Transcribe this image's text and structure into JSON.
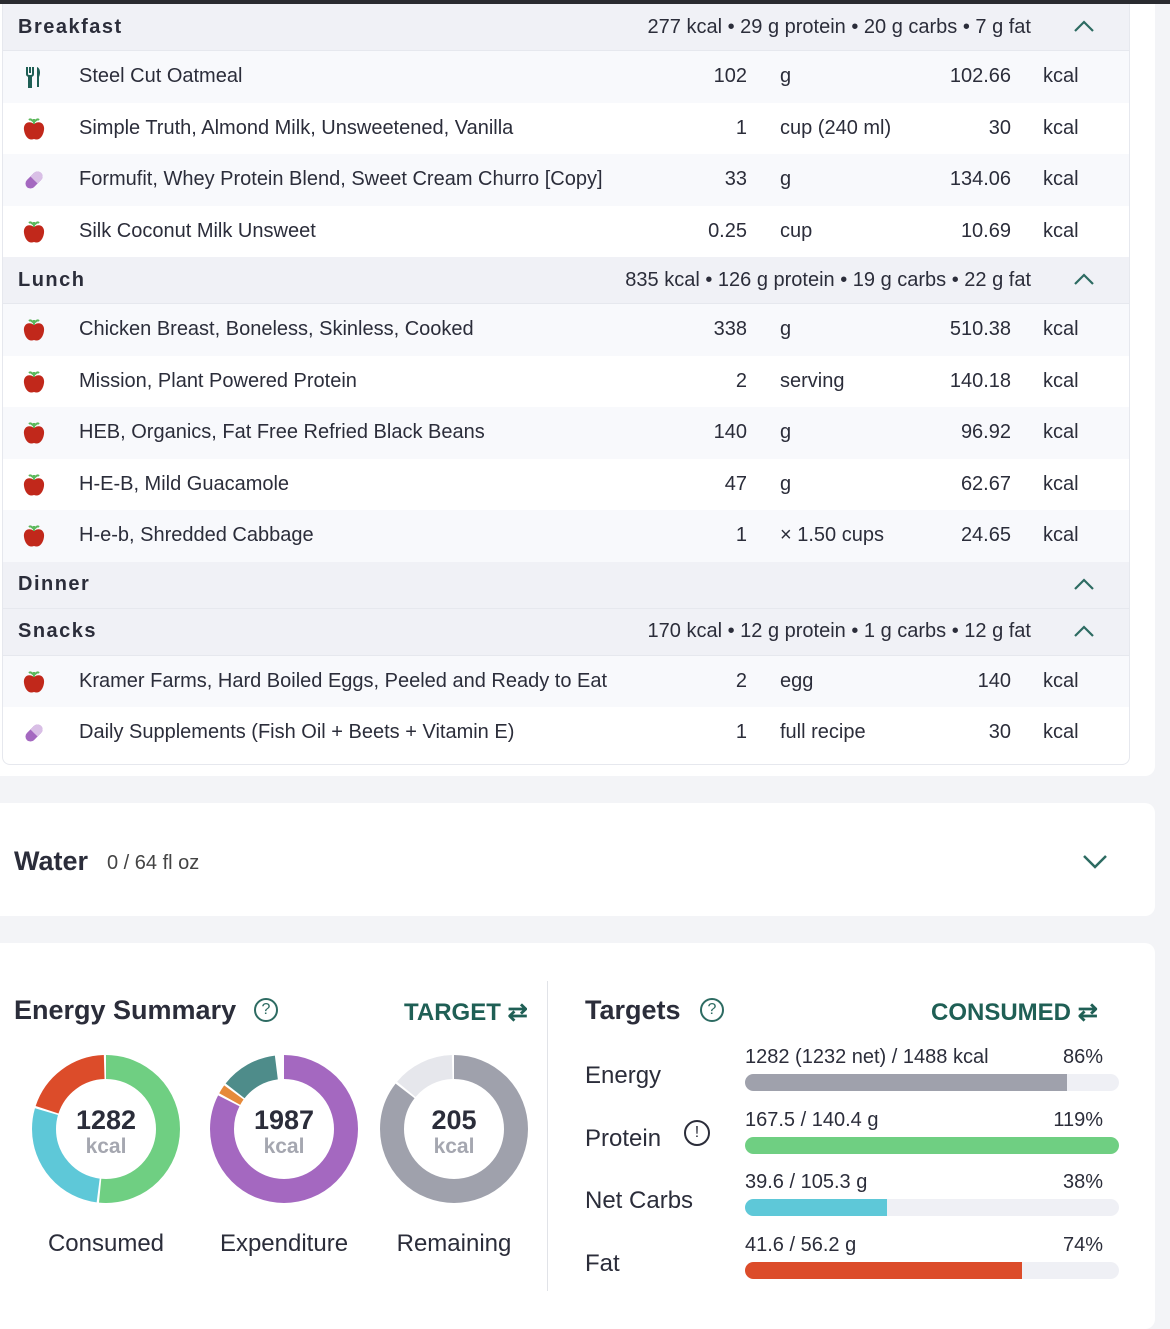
{
  "meals": [
    {
      "title": "Breakfast",
      "summary": "277 kcal • 29 g protein • 20 g carbs • 7 g fat",
      "items": [
        {
          "icon": "utensils-icon",
          "name": "Steel Cut Oatmeal",
          "amount": "102",
          "unit": "g",
          "kcal": "102.66",
          "kcal_unit": "kcal"
        },
        {
          "icon": "apple-icon",
          "name": "Simple Truth, Almond Milk, Unsweetened, Vanilla",
          "amount": "1",
          "unit": "cup (240 ml)",
          "kcal": "30",
          "kcal_unit": "kcal"
        },
        {
          "icon": "pill-icon",
          "name": "Formufit, Whey Protein Blend, Sweet Cream Churro [Copy]",
          "amount": "33",
          "unit": "g",
          "kcal": "134.06",
          "kcal_unit": "kcal"
        },
        {
          "icon": "apple-icon",
          "name": "Silk Coconut Milk Unsweet",
          "amount": "0.25",
          "unit": "cup",
          "kcal": "10.69",
          "kcal_unit": "kcal"
        }
      ]
    },
    {
      "title": "Lunch",
      "summary": "835 kcal • 126 g protein • 19 g carbs • 22 g fat",
      "items": [
        {
          "icon": "apple-icon",
          "name": "Chicken Breast, Boneless, Skinless, Cooked",
          "amount": "338",
          "unit": "g",
          "kcal": "510.38",
          "kcal_unit": "kcal"
        },
        {
          "icon": "apple-icon",
          "name": "Mission, Plant Powered Protein",
          "amount": "2",
          "unit": "serving",
          "kcal": "140.18",
          "kcal_unit": "kcal"
        },
        {
          "icon": "apple-icon",
          "name": "HEB, Organics, Fat Free Refried Black Beans",
          "amount": "140",
          "unit": "g",
          "kcal": "96.92",
          "kcal_unit": "kcal"
        },
        {
          "icon": "apple-icon",
          "name": "H-E-B, Mild Guacamole",
          "amount": "47",
          "unit": "g",
          "kcal": "62.67",
          "kcal_unit": "kcal"
        },
        {
          "icon": "apple-icon",
          "name": "H-e-b, Shredded Cabbage",
          "amount": "1",
          "unit": "× 1.50 cups",
          "kcal": "24.65",
          "kcal_unit": "kcal"
        }
      ]
    },
    {
      "title": "Dinner",
      "summary": "",
      "items": []
    },
    {
      "title": "Snacks",
      "summary": "170 kcal • 12 g protein • 1 g carbs • 12 g fat",
      "items": [
        {
          "icon": "apple-icon",
          "name": "Kramer Farms, Hard Boiled Eggs, Peeled and Ready to Eat",
          "amount": "2",
          "unit": "egg",
          "kcal": "140",
          "kcal_unit": "kcal"
        },
        {
          "icon": "pill-icon",
          "name": "Daily Supplements (Fish Oil + Beets + Vitamin E)",
          "amount": "1",
          "unit": "full recipe",
          "kcal": "30",
          "kcal_unit": "kcal"
        }
      ]
    }
  ],
  "water": {
    "title": "Water",
    "value": "0 / 64 fl oz"
  },
  "energy_summary": {
    "title": "Energy Summary",
    "help": "?",
    "toggle": "TARGET",
    "donuts": [
      {
        "value": "1282",
        "unit": "kcal",
        "label": "Consumed",
        "segments": [
          {
            "frac": 0.52,
            "color": "#6fcf82"
          },
          {
            "frac": 0.28,
            "color": "#5ec8d8"
          },
          {
            "frac": 0.2,
            "color": "#dc4c2a"
          }
        ]
      },
      {
        "value": "1987",
        "unit": "kcal",
        "label": "Expenditure",
        "segments": [
          {
            "frac": 0.83,
            "color": "#a468c0"
          },
          {
            "frac": 0.025,
            "color": "#e68a3a"
          },
          {
            "frac": 0.13,
            "color": "#4e8c8a"
          }
        ]
      },
      {
        "value": "205",
        "unit": "kcal",
        "label": "Remaining",
        "segments": [
          {
            "frac": 0.86,
            "color": "#9fa1ac"
          },
          {
            "frac": 0.14,
            "color": "#e6e7ec"
          }
        ]
      }
    ]
  },
  "targets": {
    "title": "Targets",
    "help": "?",
    "toggle": "CONSUMED",
    "warning": "!",
    "rows": [
      {
        "label": "Energy",
        "text": "1282 (1232 net) / 1488 kcal",
        "percent": "86%",
        "fill": 0.86,
        "color": "#9fa1ac"
      },
      {
        "label": "Protein",
        "text": "167.5 / 140.4 g",
        "percent": "119%",
        "fill": 1.0,
        "color": "#6fcf82"
      },
      {
        "label": "Net Carbs",
        "text": "39.6 / 105.3 g",
        "percent": "38%",
        "fill": 0.38,
        "color": "#5ec8d8"
      },
      {
        "label": "Fat",
        "text": "41.6 / 56.2 g",
        "percent": "74%",
        "fill": 0.74,
        "color": "#dc4c2a"
      }
    ]
  }
}
